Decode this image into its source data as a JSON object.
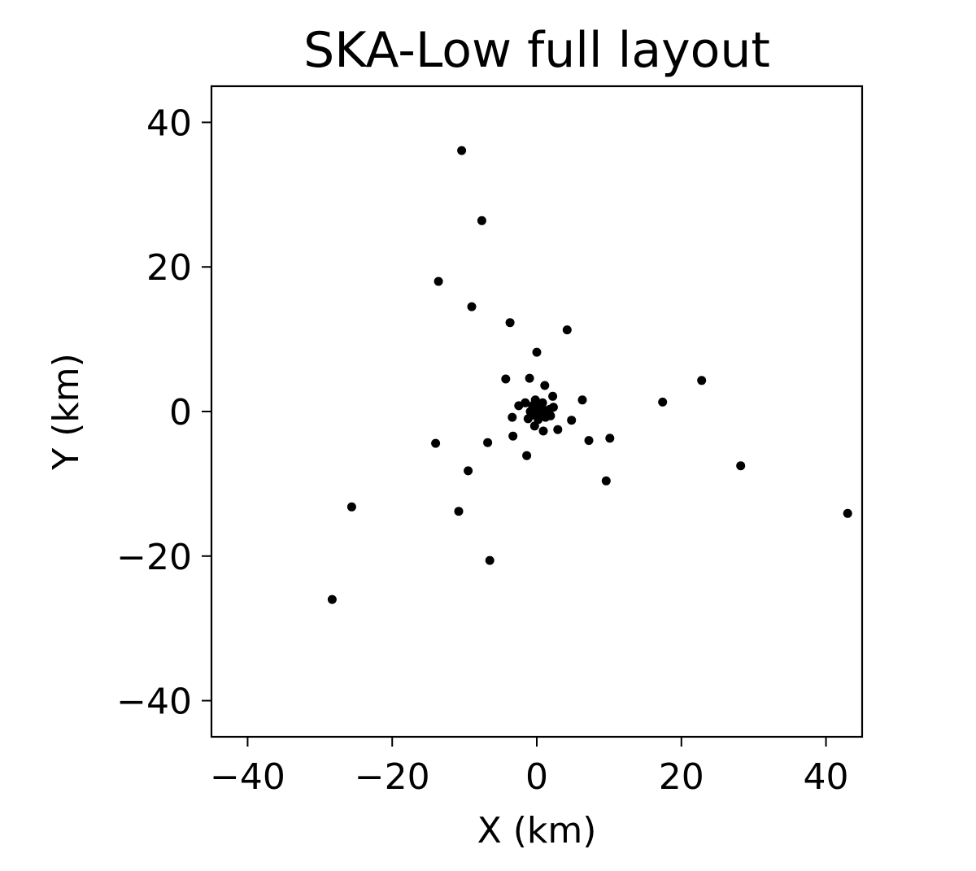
{
  "chart_data": {
    "type": "scatter",
    "title": "SKA-Low full layout",
    "xlabel": "X (km)",
    "ylabel": "Y (km)",
    "xlim": [
      -45,
      45
    ],
    "ylim": [
      -45,
      45
    ],
    "x_ticks": [
      -40,
      -20,
      0,
      20,
      40
    ],
    "y_ticks": [
      -40,
      -20,
      0,
      20,
      40
    ],
    "x_tick_labels": [
      "−40",
      "−20",
      "0",
      "20",
      "40"
    ],
    "y_tick_labels": [
      "−40",
      "−20",
      "0",
      "20",
      "40"
    ],
    "grid": false,
    "legend": false,
    "marker_color": "#000000",
    "series": [
      {
        "points": [
          {
            "x": -10.4,
            "y": 36.1
          },
          {
            "x": -7.6,
            "y": 26.4
          },
          {
            "x": -13.6,
            "y": 18.0
          },
          {
            "x": -9.0,
            "y": 14.5
          },
          {
            "x": -3.7,
            "y": 12.3
          },
          {
            "x": 4.2,
            "y": 11.3
          },
          {
            "x": 0.0,
            "y": 8.2
          },
          {
            "x": -4.3,
            "y": 4.5
          },
          {
            "x": -1.0,
            "y": 4.6
          },
          {
            "x": 1.1,
            "y": 3.6
          },
          {
            "x": 22.8,
            "y": 4.3
          },
          {
            "x": 6.3,
            "y": 1.6
          },
          {
            "x": 17.4,
            "y": 1.3
          },
          {
            "x": 2.2,
            "y": 2.1
          },
          {
            "x": -2.5,
            "y": 0.8
          },
          {
            "x": -3.4,
            "y": -0.8
          },
          {
            "x": 4.8,
            "y": -1.2
          },
          {
            "x": 2.9,
            "y": -2.5
          },
          {
            "x": -3.3,
            "y": -3.4
          },
          {
            "x": -6.8,
            "y": -4.3
          },
          {
            "x": -14.0,
            "y": -4.4
          },
          {
            "x": 7.2,
            "y": -4.0
          },
          {
            "x": 10.1,
            "y": -3.7
          },
          {
            "x": -1.4,
            "y": -6.1
          },
          {
            "x": -9.5,
            "y": -8.2
          },
          {
            "x": 28.2,
            "y": -7.5
          },
          {
            "x": 9.6,
            "y": -9.6
          },
          {
            "x": -25.6,
            "y": -13.2
          },
          {
            "x": -10.8,
            "y": -13.8
          },
          {
            "x": 43.0,
            "y": -14.1
          },
          {
            "x": -6.5,
            "y": -20.6
          },
          {
            "x": -28.3,
            "y": -26.0
          },
          {
            "x": -0.2,
            "y": 1.6
          },
          {
            "x": 0.8,
            "y": 1.2
          },
          {
            "x": -0.6,
            "y": 0.8
          },
          {
            "x": 0.3,
            "y": 0.5
          },
          {
            "x": -0.9,
            "y": 0.0
          },
          {
            "x": 0.1,
            "y": 0.0
          },
          {
            "x": 1.0,
            "y": 0.2
          },
          {
            "x": 1.8,
            "y": 0.3
          },
          {
            "x": 2.3,
            "y": 0.6
          },
          {
            "x": 0.5,
            "y": -0.4
          },
          {
            "x": -0.4,
            "y": -0.5
          },
          {
            "x": 1.2,
            "y": -0.8
          },
          {
            "x": 1.9,
            "y": -0.6
          },
          {
            "x": -1.2,
            "y": -1.0
          },
          {
            "x": 0.2,
            "y": -1.1
          },
          {
            "x": -0.3,
            "y": -2.0
          },
          {
            "x": 0.9,
            "y": -2.7
          },
          {
            "x": -1.6,
            "y": 1.2
          },
          {
            "x": 0.6,
            "y": 0.9
          },
          {
            "x": -0.1,
            "y": -0.2
          }
        ]
      }
    ]
  }
}
